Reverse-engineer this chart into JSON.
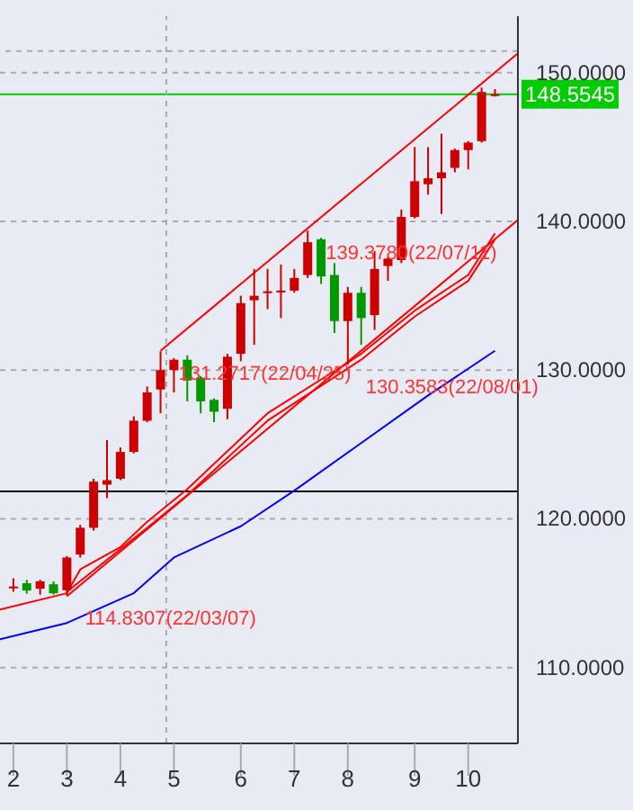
{
  "chart_data": {
    "type": "candlestick",
    "x": [
      "--02-07",
      "--02-14",
      "--02-21",
      "--02-28",
      "--03-07",
      "--03-14",
      "--03-21",
      "--03-28",
      "--04-04",
      "--04-11",
      "--04-18",
      "--04-25",
      "--05-02",
      "--05-09",
      "--05-16",
      "--05-23",
      "--05-30",
      "--06-06",
      "--06-13",
      "--06-20",
      "--06-27",
      "--07-04",
      "--07-11",
      "--07-18",
      "--07-25",
      "--08-01",
      "--08-08",
      "--08-15",
      "--08-22",
      "--08-29",
      "--09-05",
      "--09-12",
      "--09-19",
      "--09-26",
      "--10-03",
      "--10-10",
      "--10-17"
    ],
    "ohlc": [
      [
        115.4,
        116.0,
        115.1,
        115.45
      ],
      [
        115.67,
        115.9,
        114.97,
        115.18
      ],
      [
        115.3,
        115.9,
        114.9,
        115.8
      ],
      [
        115.6,
        115.8,
        114.9,
        115.0
      ],
      [
        115.2,
        117.5,
        114.8307,
        117.4
      ],
      [
        117.6,
        119.6,
        117.4,
        119.4
      ],
      [
        119.4,
        122.7,
        119.2,
        122.5
      ],
      [
        122.3,
        125.3,
        121.4,
        122.6
      ],
      [
        122.7,
        124.8,
        122.6,
        124.5
      ],
      [
        124.5,
        126.9,
        124.4,
        126.6
      ],
      [
        126.6,
        128.9,
        126.5,
        128.5
      ],
      [
        128.7,
        131.2717,
        127.1,
        130.0
      ],
      [
        130.0,
        130.8,
        128.5,
        130.7
      ],
      [
        130.7,
        131.0,
        127.9,
        129.3
      ],
      [
        129.5,
        129.6,
        127.1,
        127.9
      ],
      [
        128.0,
        128.1,
        126.5,
        127.2
      ],
      [
        127.4,
        131.1,
        126.7,
        130.9
      ],
      [
        131.1,
        135.0,
        130.6,
        134.5
      ],
      [
        134.7,
        136.8,
        131.7,
        135.0
      ],
      [
        135.2,
        136.8,
        134.1,
        135.3
      ],
      [
        135.3,
        137.1,
        133.5,
        135.35
      ],
      [
        135.35,
        136.8,
        135.2,
        136.2
      ],
      [
        136.4,
        139.378,
        136.2,
        138.6
      ],
      [
        138.8,
        138.9,
        135.8,
        136.3
      ],
      [
        136.4,
        137.2,
        132.5,
        133.3
      ],
      [
        133.3,
        135.6,
        130.3583,
        135.2
      ],
      [
        135.2,
        135.6,
        131.7,
        133.5
      ],
      [
        133.7,
        138.0,
        132.7,
        136.8
      ],
      [
        137.0,
        137.6,
        136.0,
        137.5
      ],
      [
        137.4,
        140.8,
        137.2,
        140.3
      ],
      [
        140.3,
        145.0,
        140.2,
        142.7
      ],
      [
        142.5,
        145.0,
        141.8,
        142.9
      ],
      [
        142.9,
        145.9,
        140.5,
        143.3
      ],
      [
        143.6,
        144.9,
        143.3,
        144.8
      ],
      [
        144.8,
        145.4,
        143.5,
        145.3
      ],
      [
        145.4,
        149.0,
        145.3,
        148.7
      ],
      [
        148.5,
        148.9,
        148.4,
        148.5545
      ]
    ],
    "colors": [
      "#cc0000",
      "#009900",
      "#cc0000",
      "#009900",
      "#cc0000",
      "#cc0000",
      "#cc0000",
      "#cc0000",
      "#cc0000",
      "#cc0000",
      "#cc0000",
      "#cc0000",
      "#cc0000",
      "#009900",
      "#009900",
      "#009900",
      "#cc0000",
      "#cc0000",
      "#cc0000",
      "#cc0000",
      "#cc0000",
      "#cc0000",
      "#cc0000",
      "#009900",
      "#009900",
      "#cc0000",
      "#009900",
      "#cc0000",
      "#cc0000",
      "#cc0000",
      "#cc0000",
      "#cc0000",
      "#cc0000",
      "#cc0000",
      "#cc0000",
      "#cc0000",
      "#cc0000"
    ],
    "series": [
      {
        "type": "line",
        "color": "#ff0000",
        "x": [
          "--04-25",
          "--10-29"
        ],
        "values": [
          131.3,
          151.3
        ]
      },
      {
        "type": "line",
        "color": "#ff0000",
        "x": [
          "--03-07",
          "--10-29"
        ],
        "values": [
          114.8,
          140.1
        ]
      },
      {
        "type": "line",
        "color": "#ff0000",
        "x": [
          "--01-31",
          "--03-07",
          "--03-14",
          "--04-04",
          "--04-18",
          "--05-09",
          "--06-20",
          "--08-01",
          "--08-08",
          "--09-05",
          "--10-03",
          "--10-17"
        ],
        "values": [
          113.9,
          115.0,
          116.6,
          118.1,
          119.8,
          122.0,
          127.1,
          130.5,
          131.1,
          134.0,
          136.4,
          139.2
        ]
      },
      {
        "type": "line",
        "color": "#ff0000",
        "x": [
          "--03-07",
          "--04-18",
          "--05-09",
          "--06-20",
          "--08-08",
          "--09-05",
          "--10-03",
          "--10-17"
        ],
        "values": [
          115.1,
          119.4,
          121.6,
          126.6,
          130.7,
          133.6,
          136.0,
          138.8
        ]
      },
      {
        "type": "line",
        "color": "#0000ff",
        "x": [
          "--01-31",
          "--03-07",
          "--04-11",
          "--05-02",
          "--06-06",
          "--07-04",
          "--08-08",
          "--09-12",
          "--10-17"
        ],
        "values": [
          111.9,
          113.0,
          115.0,
          117.4,
          119.5,
          121.9,
          125.1,
          128.3,
          131.3
        ]
      }
    ],
    "xlim": [
      "--01-31",
      "--10-29"
    ],
    "xticks": [
      {
        "value": "--02-07",
        "label": "2"
      },
      {
        "value": "--03-07",
        "label": "3"
      },
      {
        "value": "--04-04",
        "label": "4"
      },
      {
        "value": "--05-02",
        "label": "5"
      },
      {
        "value": "--06-06",
        "label": "6"
      },
      {
        "value": "--07-04",
        "label": "7"
      },
      {
        "value": "--08-01",
        "label": "8"
      },
      {
        "value": "--09-05",
        "label": "9"
      },
      {
        "value": "--10-03",
        "label": "10"
      }
    ],
    "ylim": [
      104.9,
      153.8
    ],
    "yticks": [
      {
        "value": 110,
        "label": "110.0000"
      },
      {
        "value": 120,
        "label": "120.0000"
      },
      {
        "value": 130,
        "label": "130.0000"
      },
      {
        "value": 140,
        "label": "140.0000"
      },
      {
        "value": 150,
        "label": "150.0000"
      }
    ],
    "grid": "y",
    "ref_lines": [
      {
        "axis": "y",
        "value": 148.5545,
        "label": "148.5545",
        "color": "#00cc00"
      },
      {
        "axis": "y",
        "value": 121.84,
        "color": "#000000"
      },
      {
        "axis": "y",
        "value": 151.45,
        "color": "#aaaaaa",
        "line_style": "dashed"
      },
      {
        "axis": "x",
        "value": "--04-28",
        "color": "#aaaaaa",
        "line_style": "dashed"
      }
    ],
    "annotations": [
      {
        "text": "114.8307(22/03/07)",
        "x": "--03-07",
        "y": 114.8307
      },
      {
        "text": "131.2717(22/04/25)",
        "x": "--04-25",
        "y": 131.2717
      },
      {
        "text": "139.3780(22/07/11)",
        "x": "--07-11",
        "y": 139.378
      },
      {
        "text": "130.3583(22/08/01)",
        "x": "--08-01",
        "y": 130.3583
      }
    ]
  }
}
